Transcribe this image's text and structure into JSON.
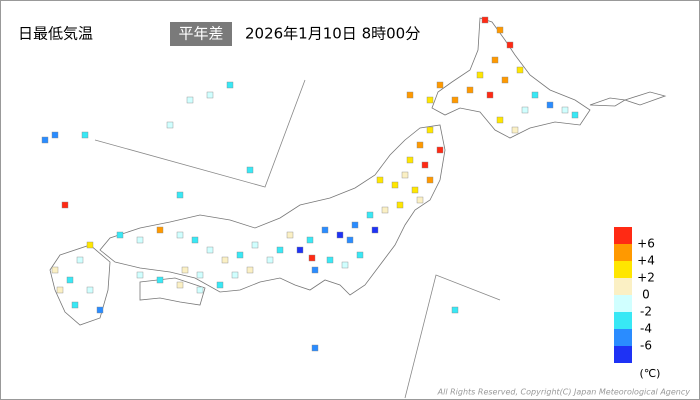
{
  "header": {
    "title": "日最低気温",
    "badge": "平年差",
    "timestamp": "2026年1月10日 8時00分"
  },
  "legend": {
    "ticks": [
      {
        "value": 6,
        "label": "+6"
      },
      {
        "value": 4,
        "label": "+4"
      },
      {
        "value": 2,
        "label": "+2"
      },
      0,
      -2,
      -4,
      -6
    ],
    "colors": [
      "#ff2a14",
      "#ff9900",
      "#ffe600",
      "#fbf0c4",
      "#d0ffff",
      "#38e8f5",
      "#2a8cff",
      "#1e32f5"
    ],
    "unit": "(℃)"
  },
  "stations": {
    "values": [
      7,
      5,
      7,
      5,
      3,
      5,
      7,
      5,
      3,
      -3,
      -5,
      -1,
      -3,
      3,
      1,
      -1,
      5,
      3,
      5,
      5,
      3,
      5,
      7,
      7,
      3,
      5,
      3,
      3,
      1,
      3,
      1,
      1,
      3,
      -3,
      -5,
      -7,
      -5,
      -3,
      -7,
      -3,
      -1,
      -3,
      -5,
      1,
      -3,
      -1,
      -5,
      -7,
      -1,
      -3,
      1,
      -1,
      -3,
      -1,
      5,
      -1,
      -3,
      1,
      -1,
      -3,
      -1,
      1,
      -1,
      1,
      -3,
      -1,
      3,
      -1,
      -3,
      1,
      -1,
      -5,
      -3,
      1,
      7,
      -5,
      -3,
      -5,
      -3,
      -1,
      7,
      -3,
      -3,
      -5,
      -1,
      -1,
      -3
    ]
  },
  "footer": {
    "copyright": "All Rights Reserved, Copyright(C) Japan Meteorological Agency"
  }
}
